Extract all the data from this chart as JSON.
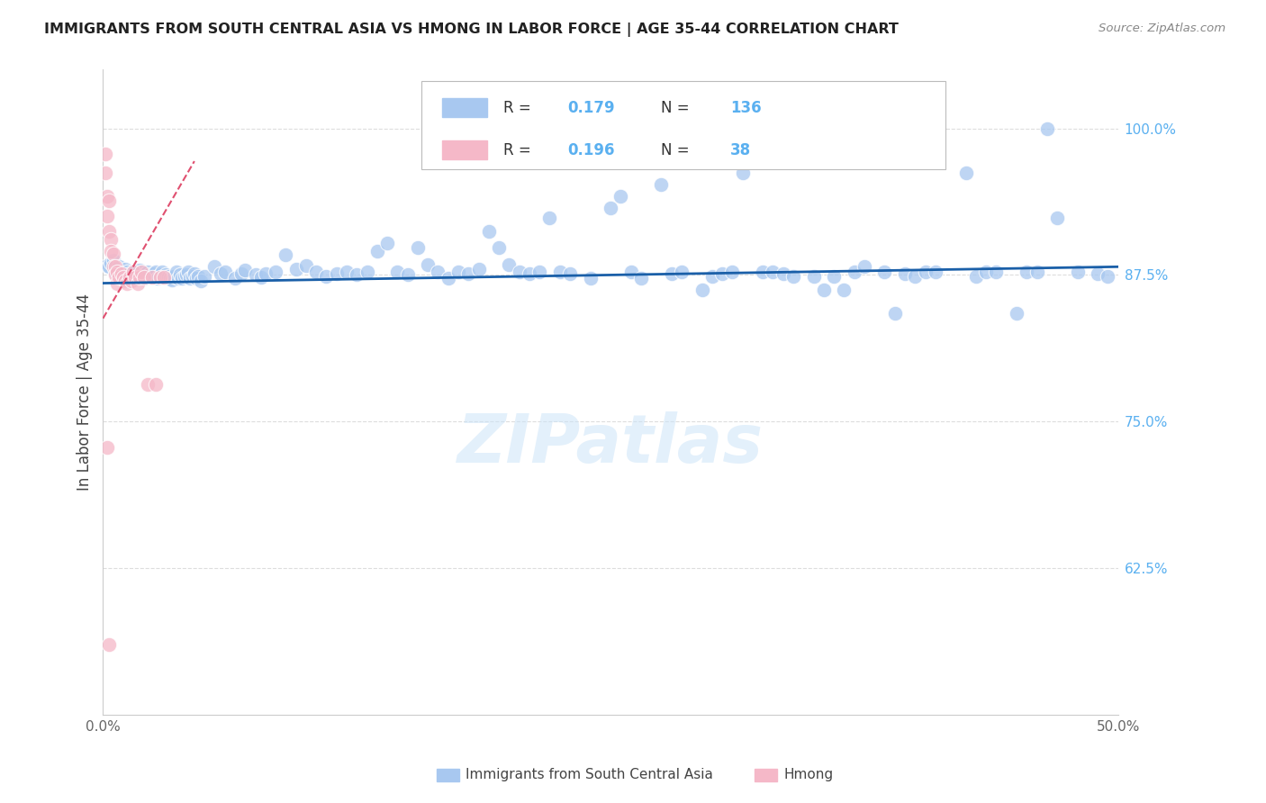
{
  "title": "IMMIGRANTS FROM SOUTH CENTRAL ASIA VS HMONG IN LABOR FORCE | AGE 35-44 CORRELATION CHART",
  "source": "Source: ZipAtlas.com",
  "ylabel": "In Labor Force | Age 35-44",
  "xlim": [
    0.0,
    0.5
  ],
  "ylim": [
    0.5,
    1.05
  ],
  "x_ticks": [
    0.0,
    0.1,
    0.2,
    0.3,
    0.4,
    0.5
  ],
  "x_tick_labels": [
    "0.0%",
    "",
    "",
    "",
    "",
    "50.0%"
  ],
  "y_tick_labels_right": [
    "62.5%",
    "75.0%",
    "87.5%",
    "100.0%"
  ],
  "y_ticks_right": [
    0.625,
    0.75,
    0.875,
    1.0
  ],
  "legend_r_blue": "0.179",
  "legend_n_blue": "136",
  "legend_r_pink": "0.196",
  "legend_n_pink": "38",
  "blue_color": "#a8c8f0",
  "pink_color": "#f5b8c8",
  "blue_line_color": "#1a5fa8",
  "pink_line_color": "#e05070",
  "title_color": "#222222",
  "source_color": "#888888",
  "right_label_color": "#5ab0f0",
  "grid_color": "#dddddd",
  "blue_scatter_x": [
    0.002,
    0.003,
    0.004,
    0.005,
    0.006,
    0.007,
    0.008,
    0.009,
    0.01,
    0.011,
    0.012,
    0.013,
    0.014,
    0.015,
    0.016,
    0.017,
    0.018,
    0.019,
    0.02,
    0.021,
    0.022,
    0.023,
    0.024,
    0.025,
    0.026,
    0.027,
    0.028,
    0.029,
    0.03,
    0.031,
    0.032,
    0.033,
    0.034,
    0.035,
    0.036,
    0.037,
    0.038,
    0.039,
    0.04,
    0.041,
    0.042,
    0.043,
    0.044,
    0.045,
    0.046,
    0.047,
    0.048,
    0.05,
    0.055,
    0.058,
    0.06,
    0.065,
    0.068,
    0.07,
    0.075,
    0.078,
    0.08,
    0.085,
    0.09,
    0.095,
    0.1,
    0.105,
    0.11,
    0.115,
    0.12,
    0.125,
    0.13,
    0.135,
    0.14,
    0.145,
    0.15,
    0.155,
    0.16,
    0.165,
    0.17,
    0.175,
    0.18,
    0.185,
    0.19,
    0.195,
    0.2,
    0.205,
    0.21,
    0.215,
    0.22,
    0.225,
    0.23,
    0.24,
    0.25,
    0.255,
    0.26,
    0.265,
    0.275,
    0.28,
    0.285,
    0.295,
    0.3,
    0.305,
    0.31,
    0.315,
    0.325,
    0.33,
    0.335,
    0.34,
    0.35,
    0.355,
    0.36,
    0.365,
    0.37,
    0.375,
    0.385,
    0.39,
    0.395,
    0.4,
    0.405,
    0.41,
    0.425,
    0.43,
    0.435,
    0.44,
    0.45,
    0.455,
    0.46,
    0.465,
    0.47,
    0.48,
    0.49,
    0.495
  ],
  "blue_scatter_y": [
    0.883,
    0.882,
    0.885,
    0.888,
    0.878,
    0.88,
    0.882,
    0.875,
    0.878,
    0.88,
    0.878,
    0.876,
    0.875,
    0.877,
    0.873,
    0.876,
    0.879,
    0.874,
    0.872,
    0.876,
    0.878,
    0.875,
    0.874,
    0.876,
    0.878,
    0.872,
    0.875,
    0.878,
    0.873,
    0.875,
    0.874,
    0.872,
    0.871,
    0.874,
    0.878,
    0.872,
    0.875,
    0.872,
    0.874,
    0.875,
    0.878,
    0.872,
    0.874,
    0.876,
    0.872,
    0.874,
    0.87,
    0.874,
    0.882,
    0.876,
    0.878,
    0.872,
    0.876,
    0.879,
    0.875,
    0.873,
    0.876,
    0.878,
    0.892,
    0.88,
    0.883,
    0.878,
    0.874,
    0.876,
    0.878,
    0.875,
    0.878,
    0.895,
    0.902,
    0.878,
    0.875,
    0.898,
    0.884,
    0.878,
    0.872,
    0.878,
    0.876,
    0.88,
    0.912,
    0.898,
    0.884,
    0.878,
    0.876,
    0.878,
    0.924,
    0.878,
    0.876,
    0.872,
    0.932,
    0.942,
    0.878,
    0.872,
    0.952,
    0.876,
    0.878,
    0.862,
    0.874,
    0.876,
    0.878,
    0.962,
    0.878,
    0.878,
    0.876,
    0.874,
    0.874,
    0.862,
    0.874,
    0.862,
    0.878,
    0.882,
    0.878,
    0.842,
    0.876,
    0.874,
    0.878,
    0.878,
    0.962,
    0.874,
    0.878,
    0.878,
    0.842,
    0.878,
    0.878,
    1.0,
    0.924,
    0.878,
    0.876,
    0.874
  ],
  "pink_scatter_x": [
    0.001,
    0.001,
    0.002,
    0.002,
    0.003,
    0.003,
    0.004,
    0.004,
    0.005,
    0.005,
    0.006,
    0.006,
    0.007,
    0.007,
    0.008,
    0.009,
    0.01,
    0.011,
    0.012,
    0.013,
    0.014,
    0.015,
    0.016,
    0.017,
    0.018,
    0.019,
    0.02,
    0.022,
    0.024,
    0.026,
    0.028,
    0.03,
    0.002,
    0.003
  ],
  "pink_scatter_y": [
    0.978,
    0.962,
    0.942,
    0.925,
    0.938,
    0.912,
    0.905,
    0.895,
    0.893,
    0.882,
    0.882,
    0.875,
    0.878,
    0.868,
    0.873,
    0.876,
    0.873,
    0.87,
    0.868,
    0.873,
    0.87,
    0.878,
    0.873,
    0.868,
    0.873,
    0.878,
    0.873,
    0.782,
    0.873,
    0.782,
    0.873,
    0.873,
    0.728,
    0.56
  ],
  "blue_line_x": [
    0.0,
    0.5
  ],
  "blue_line_y": [
    0.868,
    0.882
  ],
  "pink_line_x": [
    0.0,
    0.045
  ],
  "pink_line_y": [
    0.838,
    0.972
  ]
}
